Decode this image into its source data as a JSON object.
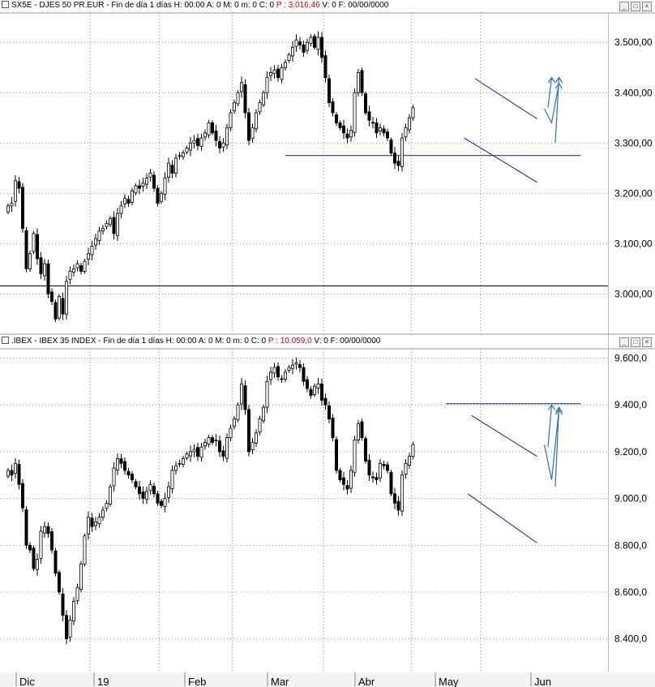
{
  "panels": [
    {
      "id": "sx5e",
      "symbol": "SX5E",
      "name": "DJES 50 PR.EUR",
      "period": "Fin de día 1 días",
      "fields": {
        "h": "H: 00:00",
        "a": "A: 0",
        "m": "M: 0",
        "mm": "m: 0",
        "c": "C: 0",
        "p": "P : 3.016,46",
        "v": "V: 0",
        "f": "F: 00/00/0000"
      }
    },
    {
      "id": "ibex",
      "symbol": ".IBEX",
      "name": "IBEX 35 INDEX",
      "period": "Fin de día 1 días",
      "fields": {
        "h": "H: 00:00",
        "a": "A: 0",
        "m": "M: 0",
        "mm": "m: 0",
        "c": "C: 0",
        "p": "P : 10.059,0",
        "v": "V: 0",
        "f": "F: 00/00/0000"
      }
    }
  ],
  "colors": {
    "up": "#ffffff",
    "down": "#000000",
    "outline": "#000000",
    "trend": "#1a1a8c",
    "projection": "#2a6fbf",
    "grid": "#8c8c8c"
  },
  "x_axis": {
    "months": [
      "Dic",
      "19",
      "Feb",
      "Mar",
      "Abr",
      "May",
      "Jun"
    ]
  },
  "chart_data": [
    {
      "type": "candlestick",
      "title": "SX5E - DJES 50 PR.EUR",
      "ylim": [
        2920,
        3560
      ],
      "yticks": [
        3000,
        3100,
        3200,
        3300,
        3400,
        3500
      ],
      "ytick_labels": [
        "3.000,00",
        "3.100,00",
        "3.200,00",
        "3.300,00",
        "3.400,00",
        "3.500,00"
      ],
      "grid": true,
      "horizontal_lines": [
        3016,
        3275
      ],
      "closes": [
        3175,
        3180,
        3225,
        3210,
        3130,
        3050,
        3080,
        3120,
        3070,
        3040,
        3060,
        3000,
        2985,
        2950,
        2995,
        2960,
        3025,
        3045,
        3050,
        3060,
        3045,
        3065,
        3080,
        3095,
        3110,
        3125,
        3130,
        3140,
        3150,
        3120,
        3160,
        3175,
        3190,
        3180,
        3205,
        3215,
        3210,
        3220,
        3230,
        3240,
        3210,
        3180,
        3200,
        3230,
        3260,
        3240,
        3270,
        3275,
        3280,
        3290,
        3300,
        3305,
        3295,
        3310,
        3320,
        3340,
        3320,
        3305,
        3290,
        3300,
        3330,
        3360,
        3380,
        3400,
        3420,
        3360,
        3305,
        3330,
        3360,
        3380,
        3400,
        3430,
        3440,
        3445,
        3430,
        3450,
        3460,
        3475,
        3490,
        3505,
        3495,
        3480,
        3500,
        3510,
        3490,
        3510,
        3470,
        3430,
        3380,
        3360,
        3340,
        3330,
        3320,
        3310,
        3325,
        3400,
        3440,
        3400,
        3360,
        3345,
        3340,
        3320,
        3330,
        3320,
        3310,
        3280,
        3260,
        3255,
        3310,
        3330,
        3350,
        3370
      ],
      "trendlines": [
        {
          "name": "upper channel",
          "x": [
            112,
            129
          ],
          "y": [
            3428,
            3348
          ]
        },
        {
          "name": "lower channel",
          "x": [
            109,
            129
          ],
          "y": [
            3310,
            3222
          ]
        }
      ],
      "projections": [
        {
          "x": [
            126,
            128,
            130
          ],
          "y": [
            3368,
            3340,
            3418
          ]
        },
        {
          "x": [
            127,
            128
          ],
          "y": [
            3370,
            3430
          ]
        },
        {
          "x": [
            129,
            130
          ],
          "y": [
            3300,
            3430
          ]
        }
      ]
    },
    {
      "type": "candlestick",
      "title": ".IBEX - IBEX 35 INDEX",
      "ylim": [
        8260,
        9640
      ],
      "yticks": [
        8400,
        8600,
        8800,
        9000,
        9200,
        9400,
        9600
      ],
      "ytick_labels": [
        "8.400,0",
        "8.600,0",
        "8.800,0",
        "9.000,0",
        "9.200,0",
        "9.400,0",
        "9.600,0"
      ],
      "grid": true,
      "horizontal_lines": [
        9405
      ],
      "closes": [
        9120,
        9100,
        9150,
        9060,
        8960,
        8800,
        8780,
        8700,
        8740,
        8860,
        8880,
        8850,
        8780,
        8680,
        8600,
        8500,
        8400,
        8480,
        8560,
        8620,
        8720,
        8840,
        8920,
        8880,
        8900,
        8920,
        8950,
        8980,
        9050,
        9130,
        9170,
        9150,
        9120,
        9100,
        9080,
        9050,
        9020,
        9000,
        9030,
        9060,
        9020,
        8980,
        8970,
        9000,
        9050,
        9120,
        9140,
        9150,
        9170,
        9190,
        9200,
        9210,
        9180,
        9220,
        9240,
        9260,
        9240,
        9250,
        9200,
        9180,
        9260,
        9300,
        9340,
        9400,
        9490,
        9380,
        9200,
        9240,
        9280,
        9340,
        9390,
        9500,
        9540,
        9560,
        9520,
        9510,
        9540,
        9560,
        9570,
        9580,
        9560,
        9500,
        9470,
        9440,
        9480,
        9490,
        9420,
        9400,
        9340,
        9260,
        9120,
        9080,
        9060,
        9040,
        9120,
        9250,
        9320,
        9260,
        9160,
        9100,
        9090,
        9080,
        9150,
        9140,
        9120,
        9020,
        8980,
        8950,
        9100,
        9150,
        9180,
        9230
      ],
      "trendlines": [
        {
          "name": "upper channel",
          "x": [
            111,
            129
          ],
          "y": [
            9355,
            9180
          ]
        },
        {
          "name": "lower channel",
          "x": [
            110,
            129
          ],
          "y": [
            9020,
            8810
          ]
        }
      ],
      "projections": [
        {
          "x": [
            126,
            128,
            130
          ],
          "y": [
            9230,
            9080,
            9380
          ]
        },
        {
          "x": [
            127,
            128
          ],
          "y": [
            9220,
            9400
          ]
        },
        {
          "x": [
            129,
            130
          ],
          "y": [
            9050,
            9390
          ]
        }
      ]
    }
  ]
}
